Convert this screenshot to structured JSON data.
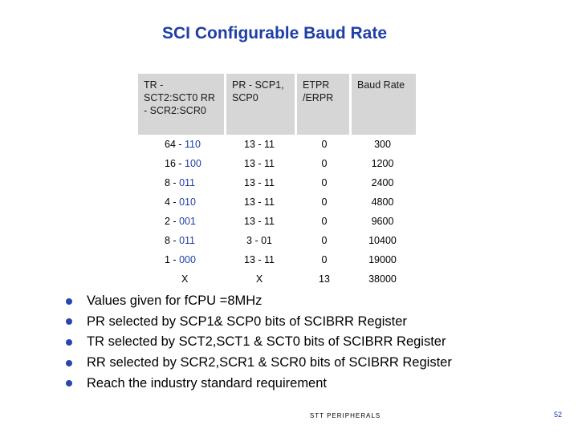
{
  "slide": {
    "title": "SCI Configurable Baud Rate",
    "footer": "STT PERIPHERALS",
    "page_number": "52"
  },
  "table": {
    "headers": [
      "TR - SCT2:SCT0 RR - SCR2:SCR0",
      "PR - SCP1, SCP0",
      "ETPR /ERPR",
      "Baud Rate"
    ],
    "rows": [
      {
        "tr_num": "64 -",
        "tr_bits": "110",
        "pr": "13 - 11",
        "etpr": "0",
        "baud": "300"
      },
      {
        "tr_num": "16 -",
        "tr_bits": "100",
        "pr": "13 - 11",
        "etpr": "0",
        "baud": "1200"
      },
      {
        "tr_num": "8 -",
        "tr_bits": "011",
        "pr": "13 - 11",
        "etpr": "0",
        "baud": "2400"
      },
      {
        "tr_num": "4 -",
        "tr_bits": "010",
        "pr": "13 - 11",
        "etpr": "0",
        "baud": "4800"
      },
      {
        "tr_num": "2 -",
        "tr_bits": "001",
        "pr": "13 - 11",
        "etpr": "0",
        "baud": "9600"
      },
      {
        "tr_num": "8 -",
        "tr_bits": "011",
        "pr": "3 - 01",
        "etpr": "0",
        "baud": "10400"
      },
      {
        "tr_num": "1 -",
        "tr_bits": "000",
        "pr": "13 - 11",
        "etpr": "0",
        "baud": "19000"
      },
      {
        "tr_num": "X",
        "tr_bits": "",
        "pr": "X",
        "etpr": "13",
        "baud": "38000"
      }
    ]
  },
  "bullets": [
    "Values given for fCPU =8MHz",
    "PR selected by SCP1& SCP0 bits of SCIBRR Register",
    "TR selected by SCT2,SCT1 & SCT0  bits of SCIBRR Register",
    "RR selected by SCR2,SCR1 & SCR0  bits of SCIBRR Register",
    "Reach the industry standard requirement"
  ],
  "colors": {
    "title": "#1f3fa6",
    "header_bg": "#d6d6d6",
    "bullet": "#2a44b0"
  }
}
